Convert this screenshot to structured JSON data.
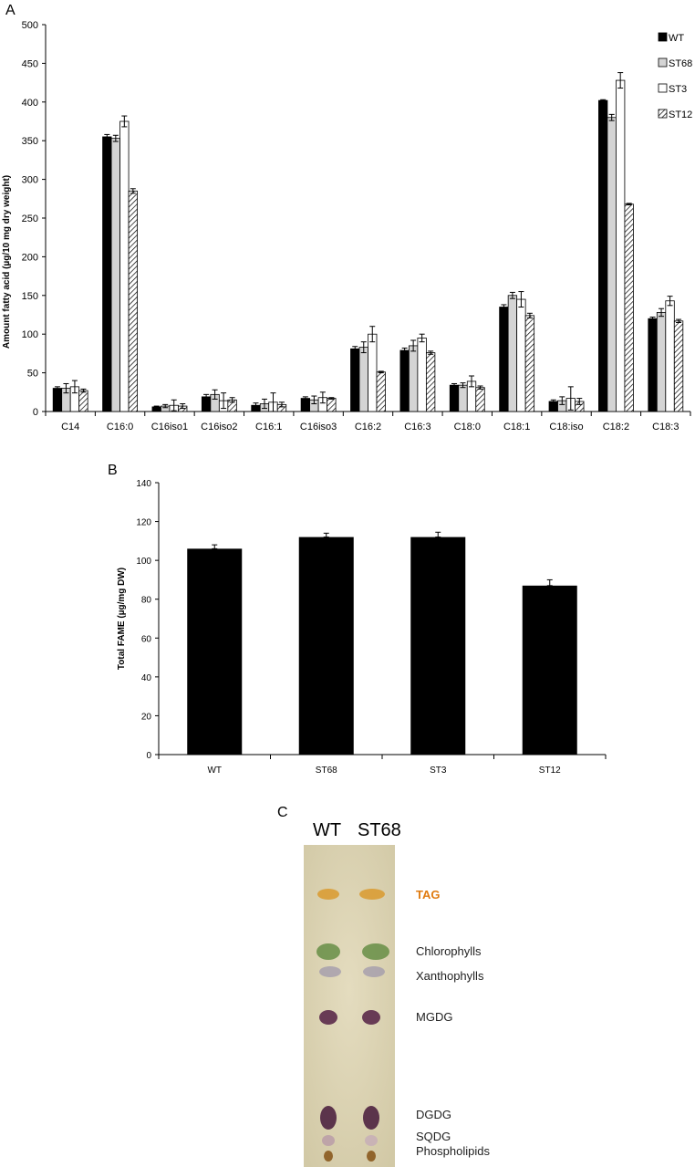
{
  "chart_data": [
    {
      "panel": "A",
      "type": "bar",
      "ylabel": "Amount fatty acid (µg/10 mg dry weight)",
      "ylim": [
        0,
        500
      ],
      "yticks": [
        0,
        50,
        100,
        150,
        200,
        250,
        300,
        350,
        400,
        450,
        500
      ],
      "categories": [
        "C14",
        "C16:0",
        "C16iso1",
        "C16iso2",
        "C16:1",
        "C16iso3",
        "C16:2",
        "C16:3",
        "C18:0",
        "C18:1",
        "C18:iso",
        "C18:2",
        "C18:3"
      ],
      "legend_position": "top-right",
      "series": [
        {
          "name": "WT",
          "color": "#000000",
          "pattern": "solid",
          "values": [
            30,
            355,
            6,
            19,
            8,
            17,
            81,
            79,
            34,
            135,
            13,
            402,
            120
          ],
          "errors": [
            2,
            3,
            1,
            3,
            3,
            2,
            3,
            3,
            2,
            3,
            2,
            1,
            2
          ]
        },
        {
          "name": "ST68",
          "color": "#d4d4d4",
          "pattern": "grey",
          "values": [
            30,
            353,
            7,
            22,
            10,
            15,
            83,
            85,
            34,
            150,
            14,
            380,
            128
          ],
          "errors": [
            6,
            4,
            2,
            6,
            6,
            5,
            7,
            7,
            3,
            4,
            5,
            4,
            5
          ]
        },
        {
          "name": "ST3",
          "color": "#ffffff",
          "pattern": "open",
          "values": [
            32,
            375,
            8,
            14,
            12,
            18,
            100,
            95,
            39,
            145,
            17,
            428,
            143
          ],
          "errors": [
            8,
            7,
            7,
            10,
            12,
            7,
            10,
            5,
            7,
            10,
            15,
            10,
            6
          ]
        },
        {
          "name": "ST12",
          "color": "#ffffff",
          "pattern": "hatch",
          "values": [
            27,
            285,
            7,
            15,
            9,
            17,
            51,
            76,
            31,
            124,
            13,
            268,
            117
          ],
          "errors": [
            2,
            3,
            3,
            3,
            3,
            1,
            1,
            2,
            2,
            3,
            4,
            1,
            2
          ]
        }
      ]
    },
    {
      "panel": "B",
      "type": "bar",
      "ylabel": "Total FAME (µg/mg DW)",
      "ylim": [
        0,
        140
      ],
      "yticks": [
        0,
        20,
        40,
        60,
        80,
        100,
        120,
        140
      ],
      "categories": [
        "WT",
        "ST68",
        "ST3",
        "ST12"
      ],
      "series": [
        {
          "name": "",
          "color": "#000000",
          "values": [
            106,
            112,
            112,
            87
          ],
          "errors": [
            2,
            2,
            2.5,
            3
          ]
        }
      ]
    }
  ],
  "panel_c": {
    "letter": "C",
    "lanes": [
      "WT",
      "ST68"
    ],
    "bands": [
      {
        "label": "TAG",
        "color": "#e07b10"
      },
      {
        "label": "Chlorophylls",
        "color": "#222222"
      },
      {
        "label": "Xanthophylls",
        "color": "#222222"
      },
      {
        "label": "MGDG",
        "color": "#222222"
      },
      {
        "label": "DGDG",
        "color": "#222222"
      },
      {
        "label": "SQDG",
        "color": "#222222"
      },
      {
        "label": "Phospholipids",
        "color": "#222222"
      }
    ]
  }
}
